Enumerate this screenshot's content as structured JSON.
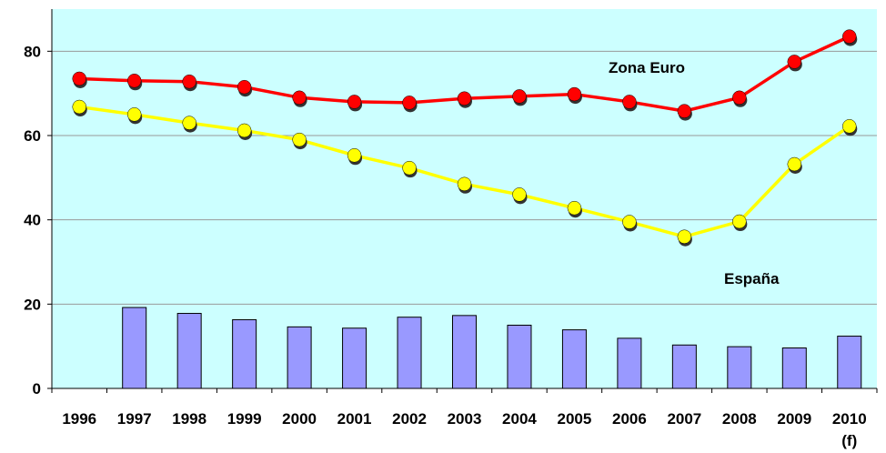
{
  "colors": {
    "plot_background": "#ccffff",
    "gridline": "#999999",
    "euro_line": "#ff0000",
    "spain_line": "#ffff00",
    "bars": "#9999ff",
    "marker_shadow": "#333333"
  },
  "chart_data": {
    "type": "line",
    "categories": [
      "1996",
      "1997",
      "1998",
      "1999",
      "2000",
      "2001",
      "2002",
      "2003",
      "2004",
      "2005",
      "2006",
      "2007",
      "2008",
      "2009",
      "2010"
    ],
    "category_sublabels": [
      "",
      "",
      "",
      "",
      "",
      "",
      "",
      "",
      "",
      "",
      "",
      "",
      "",
      "",
      "(f)"
    ],
    "ylim": [
      0,
      90
    ],
    "yticks": [
      0,
      20,
      40,
      60,
      80
    ],
    "grid": true,
    "series": [
      {
        "name": "Zona Euro",
        "type": "line",
        "marker": "circle",
        "color": "#ff0000",
        "values": [
          73.5,
          73.0,
          72.8,
          71.5,
          69.0,
          68.0,
          67.8,
          68.8,
          69.3,
          69.8,
          68.0,
          65.8,
          69.0,
          77.5,
          83.5
        ]
      },
      {
        "name": "España",
        "type": "line",
        "marker": "circle",
        "color": "#ffff00",
        "values": [
          66.8,
          65.0,
          63.0,
          61.2,
          59.0,
          55.3,
          52.3,
          48.5,
          46.0,
          42.8,
          39.5,
          36.0,
          39.6,
          53.2,
          62.2
        ]
      },
      {
        "name": "",
        "type": "bar",
        "color": "#9999ff",
        "values": [
          null,
          19.2,
          17.8,
          16.3,
          14.6,
          14.3,
          16.9,
          17.3,
          15.0,
          13.9,
          11.9,
          10.3,
          9.9,
          9.6,
          12.4
        ]
      }
    ]
  }
}
